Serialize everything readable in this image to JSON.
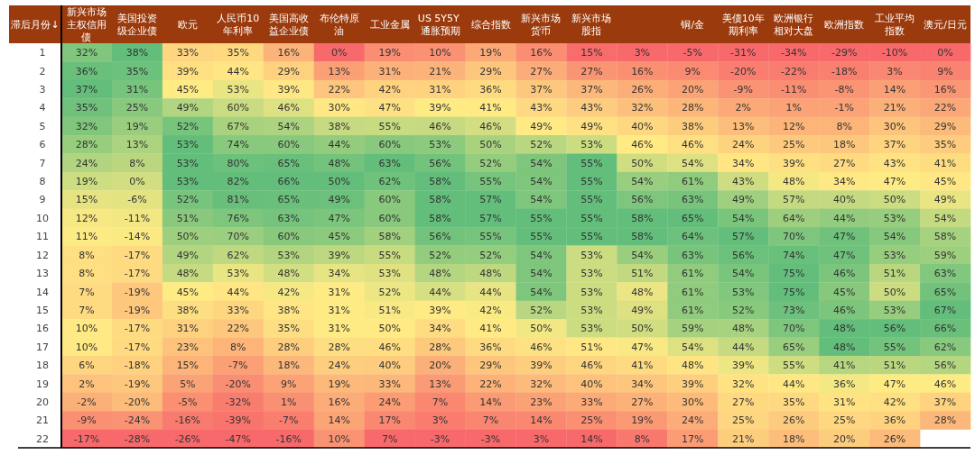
{
  "chart_data": {
    "type": "heatmap",
    "ylabel": "滞后月份↓",
    "categories": [
      "新兴市场主权信用债",
      "美国投资级企业债",
      "欧元",
      "人民币10年利率",
      "美国高收益企业债",
      "布伦特原油",
      "工业金属",
      "US 5Y5Y 通胀预期",
      "综合指数",
      "新兴市场货币",
      "新兴市场股指",
      null,
      "铜/金",
      "美债10年期利率",
      "欧洲银行相对大盘",
      "欧洲指数",
      "工业平均指数",
      "澳元/日元"
    ],
    "y_categories": [
      "1",
      "2",
      "3",
      "4",
      "5",
      "6",
      "7",
      "8",
      "9",
      "10",
      "11",
      "12",
      "13",
      "14",
      "15",
      "16",
      "17",
      "18",
      "19",
      "20",
      "21",
      "22"
    ],
    "colors": [
      "#f8696b",
      "#ffeb84",
      "#63be7b"
    ],
    "cells": [
      [
        32,
        38,
        33,
        35,
        16,
        0,
        19,
        10,
        19,
        16,
        15,
        3,
        -5,
        -31,
        -34,
        -29,
        -10,
        0
      ],
      [
        36,
        35,
        39,
        44,
        29,
        13,
        31,
        21,
        29,
        27,
        27,
        16,
        9,
        -20,
        -22,
        -18,
        3,
        9
      ],
      [
        37,
        31,
        45,
        53,
        39,
        22,
        42,
        31,
        36,
        37,
        37,
        26,
        20,
        -9,
        -11,
        -8,
        14,
        16
      ],
      [
        35,
        25,
        49,
        60,
        46,
        30,
        47,
        39,
        41,
        43,
        43,
        32,
        28,
        2,
        1,
        -1,
        21,
        22
      ],
      [
        32,
        19,
        52,
        67,
        54,
        38,
        55,
        46,
        46,
        49,
        49,
        40,
        38,
        13,
        12,
        8,
        30,
        29
      ],
      [
        28,
        13,
        53,
        74,
        60,
        44,
        60,
        53,
        50,
        52,
        53,
        46,
        46,
        24,
        25,
        18,
        37,
        35
      ],
      [
        24,
        8,
        53,
        80,
        65,
        48,
        63,
        56,
        52,
        54,
        55,
        50,
        54,
        34,
        39,
        27,
        43,
        41
      ],
      [
        19,
        0,
        53,
        82,
        66,
        50,
        62,
        58,
        55,
        54,
        55,
        54,
        61,
        43,
        48,
        34,
        47,
        45
      ],
      [
        15,
        -6,
        52,
        81,
        65,
        49,
        60,
        58,
        57,
        54,
        55,
        56,
        63,
        49,
        57,
        40,
        50,
        49
      ],
      [
        12,
        -11,
        51,
        76,
        63,
        47,
        60,
        58,
        57,
        55,
        55,
        58,
        65,
        54,
        64,
        44,
        53,
        54
      ],
      [
        11,
        -14,
        50,
        70,
        60,
        45,
        58,
        56,
        55,
        55,
        55,
        58,
        64,
        57,
        70,
        47,
        54,
        58
      ],
      [
        8,
        -17,
        49,
        62,
        53,
        39,
        55,
        52,
        52,
        54,
        53,
        54,
        63,
        56,
        74,
        47,
        53,
        59
      ],
      [
        8,
        -17,
        48,
        53,
        48,
        34,
        53,
        48,
        48,
        54,
        53,
        51,
        61,
        54,
        75,
        46,
        51,
        63
      ],
      [
        7,
        -19,
        45,
        44,
        42,
        31,
        52,
        44,
        44,
        54,
        53,
        48,
        61,
        53,
        75,
        45,
        50,
        65
      ],
      [
        7,
        -19,
        38,
        33,
        38,
        31,
        51,
        39,
        42,
        52,
        53,
        49,
        61,
        52,
        73,
        46,
        53,
        67
      ],
      [
        10,
        -17,
        31,
        22,
        35,
        31,
        50,
        34,
        41,
        50,
        53,
        50,
        59,
        48,
        70,
        48,
        56,
        66
      ],
      [
        10,
        -17,
        23,
        8,
        28,
        28,
        46,
        28,
        36,
        46,
        51,
        47,
        54,
        44,
        65,
        48,
        55,
        62
      ],
      [
        6,
        -18,
        15,
        -7,
        18,
        24,
        40,
        20,
        29,
        39,
        46,
        41,
        48,
        39,
        55,
        41,
        51,
        56
      ],
      [
        2,
        -19,
        5,
        -20,
        9,
        19,
        33,
        13,
        22,
        32,
        40,
        34,
        39,
        32,
        44,
        36,
        47,
        46
      ],
      [
        -2,
        -20,
        -5,
        -32,
        1,
        16,
        24,
        7,
        14,
        23,
        33,
        27,
        30,
        27,
        35,
        31,
        42,
        37
      ],
      [
        -9,
        -24,
        -16,
        -39,
        -7,
        14,
        17,
        3,
        7,
        14,
        25,
        19,
        24,
        25,
        26,
        25,
        36,
        28
      ],
      [
        -17,
        -28,
        -26,
        -47,
        -16,
        10,
        7,
        -3,
        -3,
        3,
        14,
        8,
        17,
        21,
        18,
        20,
        26,
        null
      ]
    ],
    "cell_labels": [
      [
        "32%",
        "38%",
        "33%",
        "35%",
        "16%",
        "0%",
        "19%",
        "10%",
        "19%",
        "16%",
        "15%",
        "3%",
        "-5%",
        "-31%",
        "-34%",
        "-29%",
        "-10%",
        "0%"
      ],
      [
        "36%",
        "35%",
        "39%",
        "44%",
        "29%",
        "13%",
        "31%",
        "21%",
        "29%",
        "27%",
        "27%",
        "16%",
        "9%",
        "-20%",
        "-22%",
        "-18%",
        "3%",
        "9%"
      ],
      [
        "37%",
        "31%",
        "45%",
        "53%",
        "39%",
        "22%",
        "42%",
        "31%",
        "36%",
        "37%",
        "37%",
        "26%",
        "20%",
        "-9%",
        "-11%",
        "-8%",
        "14%",
        "16%"
      ],
      [
        "35%",
        "25%",
        "49%",
        "60%",
        "46%",
        "30%",
        "47%",
        "39%",
        "41%",
        "43%",
        "43%",
        "32%",
        "28%",
        "2%",
        "1%",
        "-1%",
        "21%",
        "22%"
      ],
      [
        "32%",
        "19%",
        "52%",
        "67%",
        "54%",
        "38%",
        "55%",
        "46%",
        "46%",
        "49%",
        "49%",
        "40%",
        "38%",
        "13%",
        "12%",
        "8%",
        "30%",
        "29%"
      ],
      [
        "28%",
        "13%",
        "53%",
        "74%",
        "60%",
        "44%",
        "60%",
        "53%",
        "50%",
        "52%",
        "53%",
        "46%",
        "46%",
        "24%",
        "25%",
        "18%",
        "37%",
        "35%"
      ],
      [
        "24%",
        "8%",
        "53%",
        "80%",
        "65%",
        "48%",
        "63%",
        "56%",
        "52%",
        "54%",
        "55%",
        "50%",
        "54%",
        "34%",
        "39%",
        "27%",
        "43%",
        "41%"
      ],
      [
        "19%",
        "0%",
        "53%",
        "82%",
        "66%",
        "50%",
        "62%",
        "58%",
        "55%",
        "54%",
        "55%",
        "54%",
        "61%",
        "43%",
        "48%",
        "34%",
        "47%",
        "45%"
      ],
      [
        "15%",
        "-6%",
        "52%",
        "81%",
        "65%",
        "49%",
        "60%",
        "58%",
        "57%",
        "54%",
        "55%",
        "56%",
        "63%",
        "49%",
        "57%",
        "40%",
        "50%",
        "49%"
      ],
      [
        "12%",
        "-11%",
        "51%",
        "76%",
        "63%",
        "47%",
        "60%",
        "58%",
        "57%",
        "55%",
        "55%",
        "58%",
        "65%",
        "54%",
        "64%",
        "44%",
        "53%",
        "54%"
      ],
      [
        "11%",
        "-14%",
        "50%",
        "70%",
        "60%",
        "45%",
        "58%",
        "56%",
        "55%",
        "55%",
        "55%",
        "58%",
        "64%",
        "57%",
        "70%",
        "47%",
        "54%",
        "58%"
      ],
      [
        "8%",
        "-17%",
        "49%",
        "62%",
        "53%",
        "39%",
        "55%",
        "52%",
        "52%",
        "54%",
        "53%",
        "54%",
        "63%",
        "56%",
        "74%",
        "47%",
        "53%",
        "59%"
      ],
      [
        "8%",
        "-17%",
        "48%",
        "53%",
        "48%",
        "34%",
        "53%",
        "48%",
        "48%",
        "54%",
        "53%",
        "51%",
        "61%",
        "54%",
        "75%",
        "46%",
        "51%",
        "63%"
      ],
      [
        "7%",
        "-19%",
        "45%",
        "44%",
        "42%",
        "31%",
        "52%",
        "44%",
        "44%",
        "54%",
        "53%",
        "48%",
        "61%",
        "53%",
        "75%",
        "45%",
        "50%",
        "65%"
      ],
      [
        "7%",
        "-19%",
        "38%",
        "33%",
        "38%",
        "31%",
        "51%",
        "39%",
        "42%",
        "52%",
        "53%",
        "49%",
        "61%",
        "52%",
        "73%",
        "46%",
        "53%",
        "67%"
      ],
      [
        "10%",
        "-17%",
        "31%",
        "22%",
        "35%",
        "31%",
        "50%",
        "34%",
        "41%",
        "50%",
        "53%",
        "50%",
        "59%",
        "48%",
        "70%",
        "48%",
        "56%",
        "66%"
      ],
      [
        "10%",
        "-17%",
        "23%",
        "8%",
        "28%",
        "28%",
        "46%",
        "28%",
        "36%",
        "46%",
        "51%",
        "47%",
        "54%",
        "44%",
        "65%",
        "48%",
        "55%",
        "62%"
      ],
      [
        "6%",
        "-18%",
        "15%",
        "-7%",
        "18%",
        "24%",
        "40%",
        "20%",
        "29%",
        "39%",
        "46%",
        "41%",
        "48%",
        "39%",
        "55%",
        "41%",
        "51%",
        "56%"
      ],
      [
        "2%",
        "-19%",
        "5%",
        "-20%",
        "9%",
        "19%",
        "33%",
        "13%",
        "22%",
        "32%",
        "40%",
        "34%",
        "39%",
        "32%",
        "44%",
        "36%",
        "47%",
        "46%"
      ],
      [
        "-2%",
        "-20%",
        "-5%",
        "-32%",
        "1%",
        "16%",
        "24%",
        "7%",
        "14%",
        "23%",
        "33%",
        "27%",
        "30%",
        "27%",
        "35%",
        "31%",
        "42%",
        "37%"
      ],
      [
        "-9%",
        "-24%",
        "-16%",
        "-39%",
        "-7%",
        "14%",
        "17%",
        "3%",
        "7%",
        "14%",
        "25%",
        "19%",
        "24%",
        "25%",
        "26%",
        "25%",
        "36%",
        "28%"
      ],
      [
        "-17%",
        "-28%",
        "-26%",
        "-47%",
        "-16%",
        "10%",
        "7%",
        "-3%",
        "-3%",
        "3%",
        "14%",
        "8%",
        "17%",
        "21%",
        "18%",
        "20%",
        "26%",
        null
      ]
    ]
  }
}
